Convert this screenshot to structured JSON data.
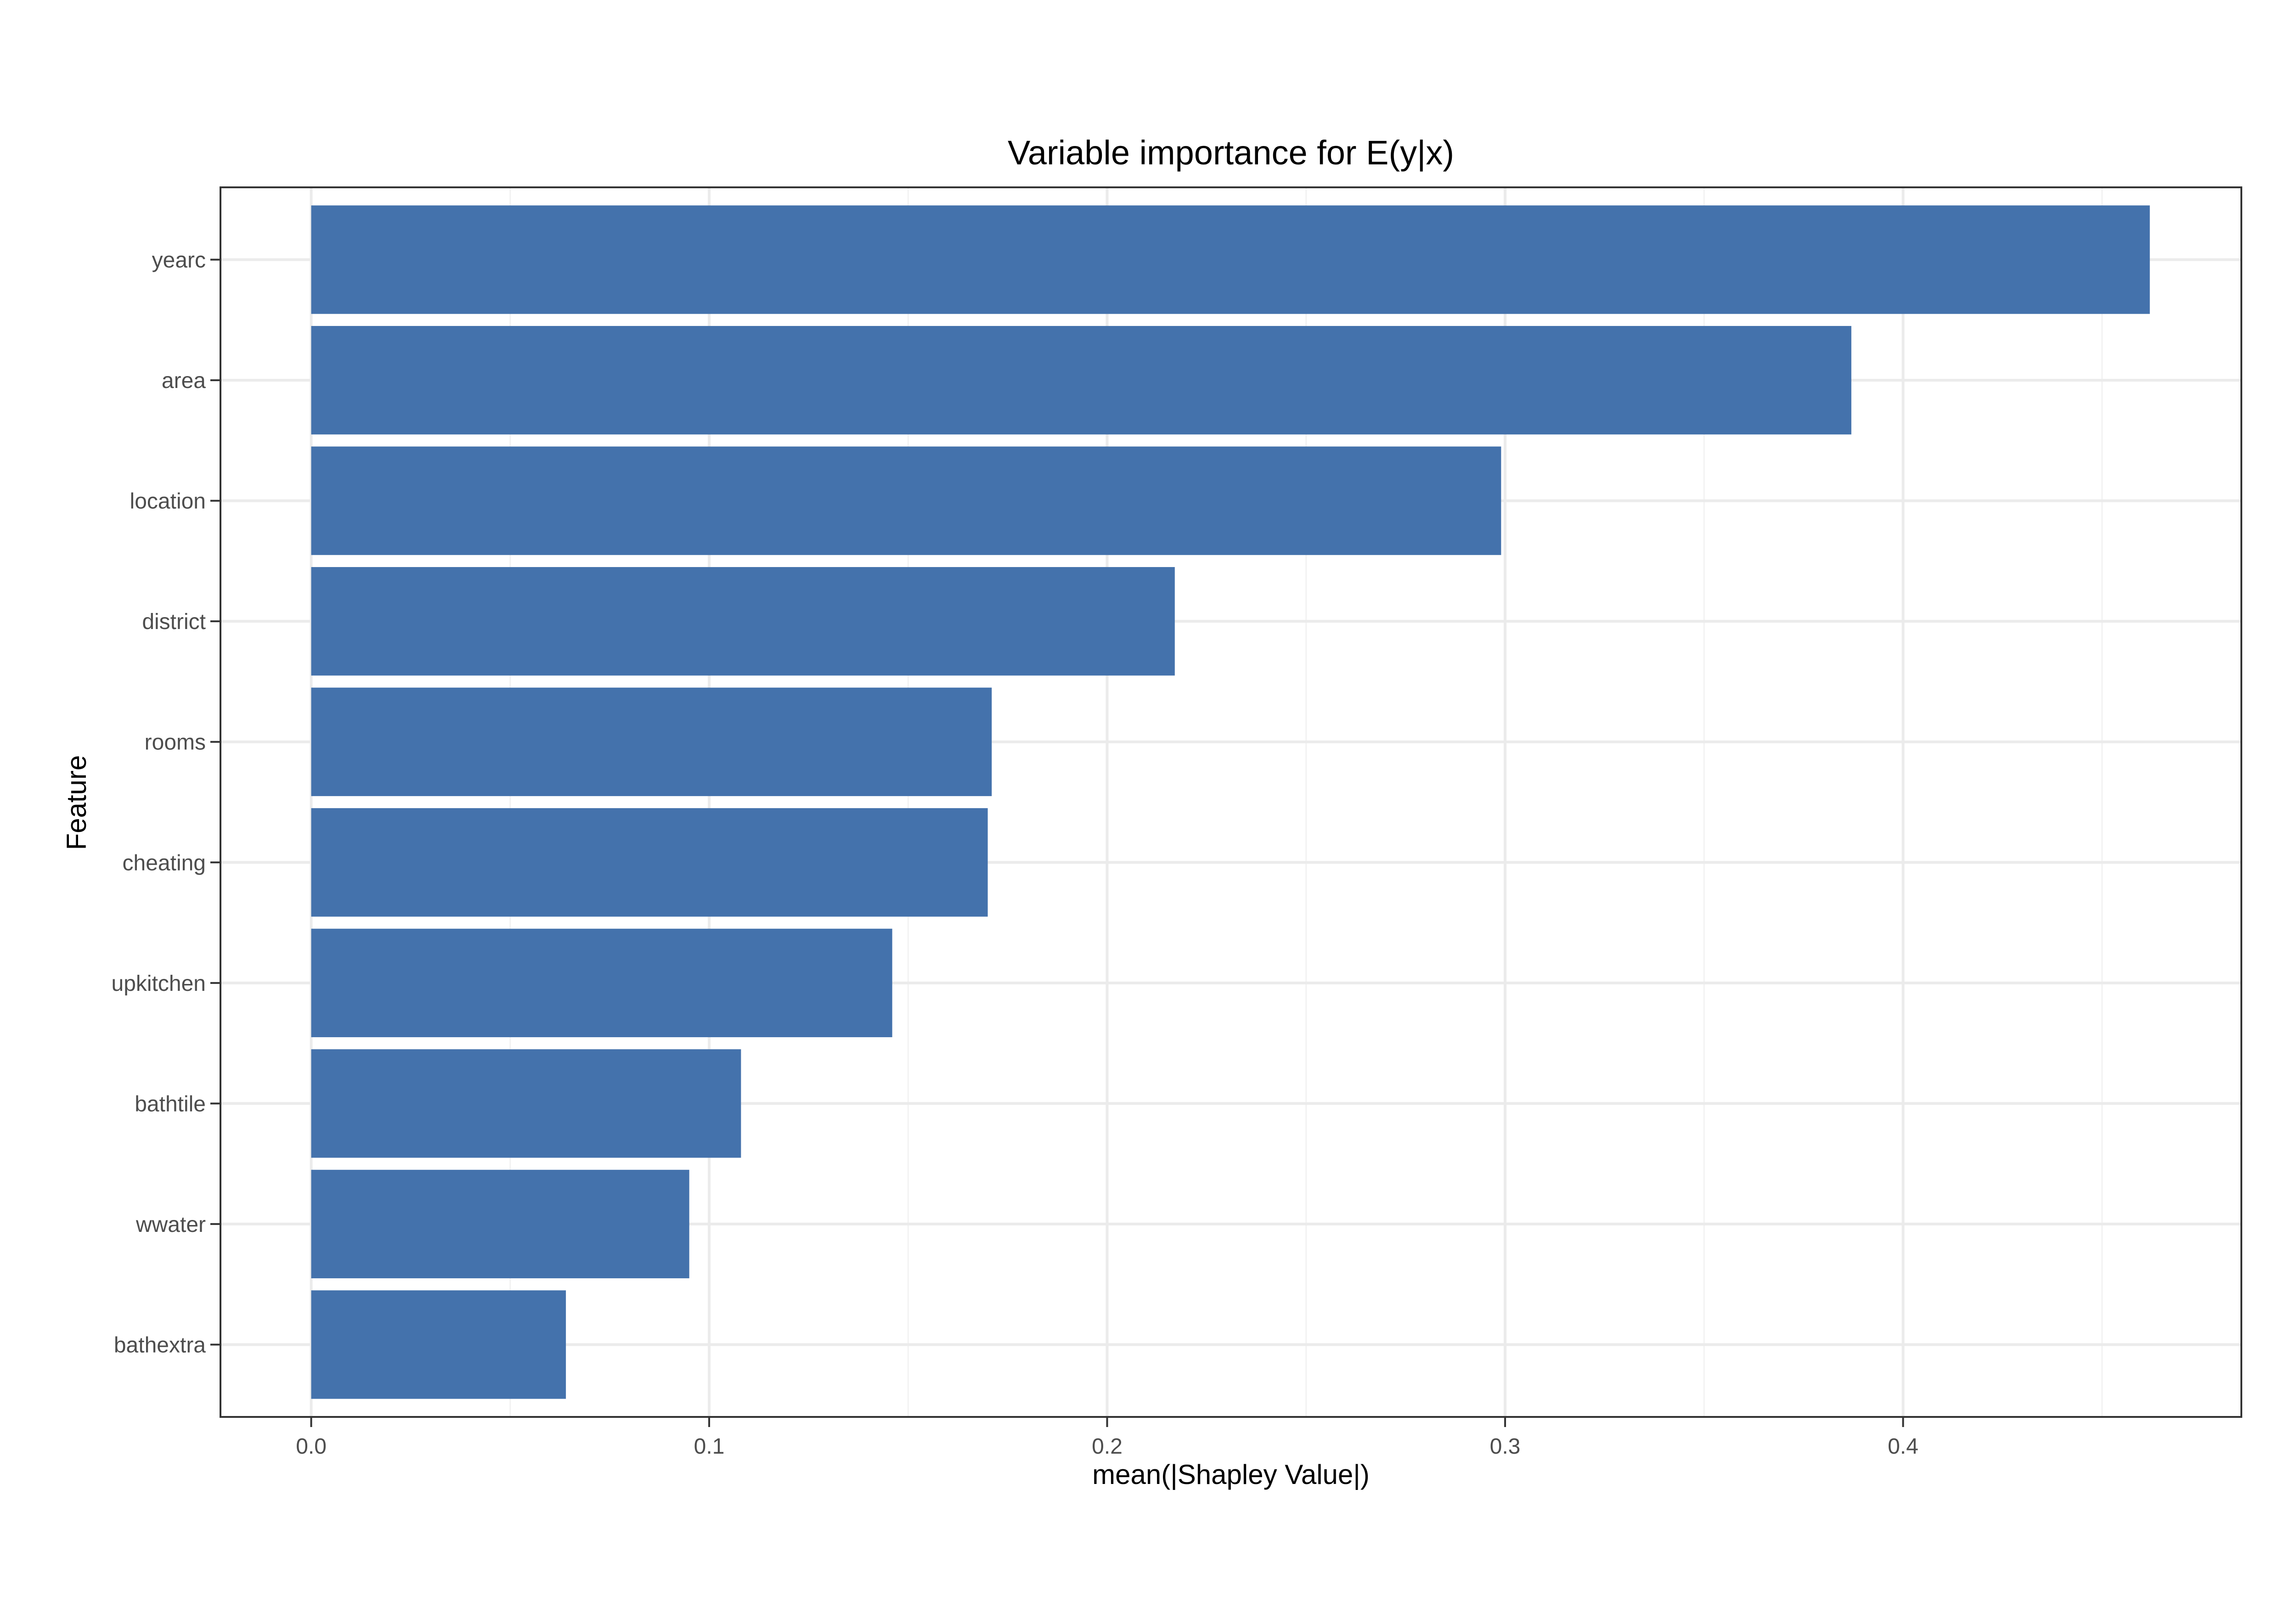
{
  "chart_data": {
    "type": "bar",
    "orientation": "horizontal",
    "title": "Variable importance for E(y|x)",
    "xlabel": "mean(|Shapley Value|)",
    "ylabel": "Feature",
    "categories": [
      "yearc",
      "area",
      "location",
      "district",
      "rooms",
      "cheating",
      "upkitchen",
      "bathtile",
      "wwater",
      "bathextra"
    ],
    "values": [
      0.462,
      0.387,
      0.299,
      0.217,
      0.171,
      0.17,
      0.146,
      0.108,
      0.095,
      0.064
    ],
    "xlim": [
      -0.0228,
      0.485
    ],
    "xticks": [
      0.0,
      0.1,
      0.2,
      0.3,
      0.4
    ],
    "xtick_labels": [
      "0.0",
      "0.1",
      "0.2",
      "0.3",
      "0.4"
    ],
    "grid": true,
    "legend": "none",
    "bar_color": "#4472ac"
  }
}
